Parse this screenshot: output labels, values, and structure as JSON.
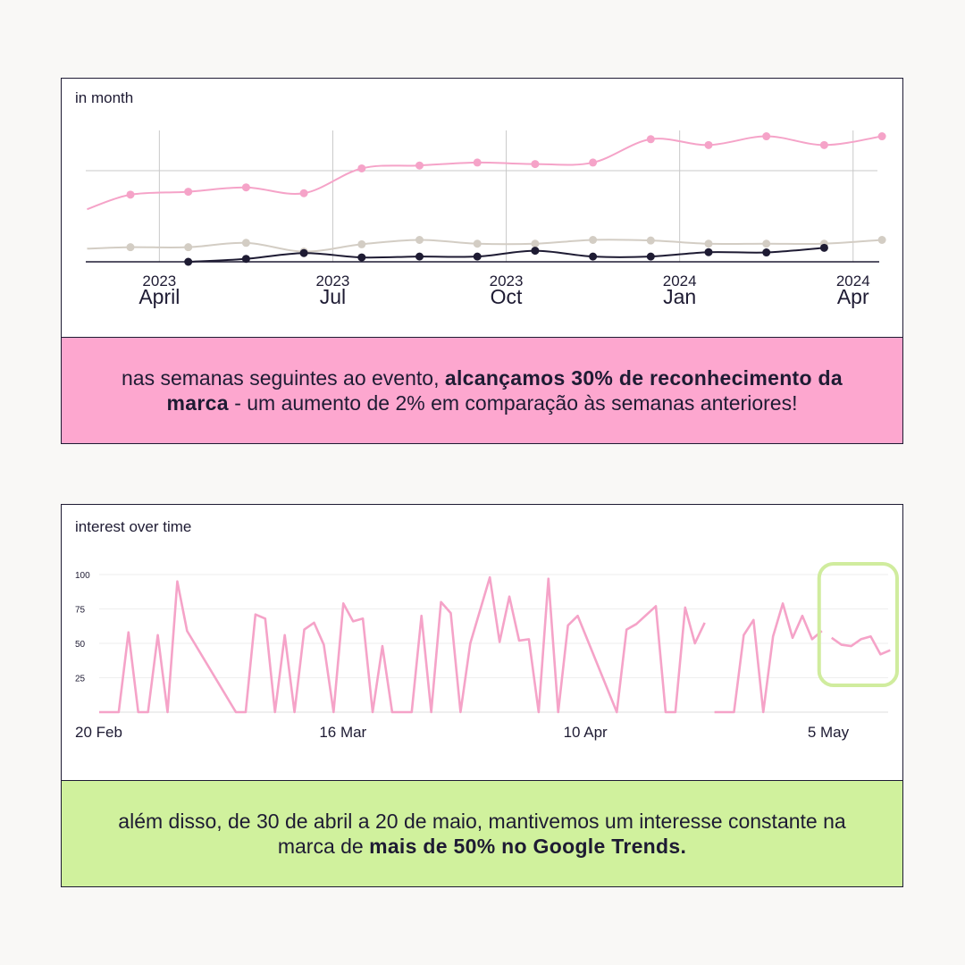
{
  "chart_data": [
    {
      "type": "line",
      "label": "in month",
      "x_ticks": [
        {
          "year": "2023",
          "month": "April"
        },
        {
          "year": "2023",
          "month": "Jul"
        },
        {
          "year": "2023",
          "month": "Oct"
        },
        {
          "year": "2024",
          "month": "Jan"
        },
        {
          "year": "2024",
          "month": "Apr"
        }
      ],
      "x_tick_positions": [
        0.5,
        3.5,
        6.5,
        9.5,
        12.5
      ],
      "x": [
        -0.75,
        0,
        1,
        2,
        3,
        4,
        5,
        6,
        7,
        8,
        9,
        10,
        11,
        12,
        13
      ],
      "ylim": [
        0,
        45
      ],
      "grid": true,
      "series": [
        {
          "color": "#f5a3c8",
          "values": [
            18,
            23,
            24,
            25.5,
            23.5,
            32,
            33,
            34,
            33.5,
            34,
            42,
            40,
            43,
            40,
            43
          ],
          "first_marker": 1
        },
        {
          "color": "#d3cdc4",
          "values": [
            4.5,
            5,
            5,
            6.5,
            3.5,
            6,
            7.5,
            6.2,
            6.2,
            7.5,
            7.3,
            6.2,
            6.2,
            6.2,
            7.5
          ],
          "first_marker": 1
        },
        {
          "color": "#1e1b33",
          "values": [
            null,
            null,
            0,
            1,
            3,
            1.5,
            1.8,
            1.8,
            3.8,
            1.8,
            1.8,
            3.3,
            3.2,
            4.8,
            null
          ],
          "first_marker": 2
        }
      ]
    },
    {
      "type": "line",
      "label": "interest over time",
      "y_ticks": [
        25,
        50,
        75,
        100
      ],
      "ylim": [
        0,
        100
      ],
      "grid": true,
      "x_ticks": [
        "20 Feb",
        "16 Mar",
        "10 Apr",
        "5 May"
      ],
      "x_tick_positions": [
        0,
        24,
        49,
        74
      ],
      "x": [
        0,
        2,
        3,
        4,
        5,
        6,
        7,
        8,
        9,
        14,
        15,
        16,
        17,
        18,
        19,
        20,
        21,
        22,
        23,
        24,
        25,
        26,
        27,
        28,
        29,
        30,
        31,
        32,
        33,
        34,
        35,
        36,
        37,
        38,
        40,
        41,
        42,
        43,
        44,
        45,
        46,
        47,
        48,
        49,
        53,
        54,
        55,
        57,
        58,
        59,
        60,
        61,
        62,
        63,
        64,
        65,
        66,
        67,
        68,
        69,
        70,
        71,
        72,
        73,
        74,
        75,
        76,
        77,
        78,
        79,
        80,
        81
      ],
      "series": [
        {
          "color": "#f5a3c8",
          "values": [
            0,
            0,
            58,
            0,
            0,
            56,
            0,
            95,
            59,
            0,
            0,
            71,
            68,
            0,
            56,
            0,
            60,
            65,
            49,
            0,
            79,
            66,
            68,
            0,
            48,
            0,
            0,
            0,
            70,
            0,
            80,
            72,
            0,
            50,
            98,
            51,
            84,
            52,
            53,
            0,
            97,
            0,
            63,
            70,
            0,
            60,
            64,
            77,
            0,
            0,
            76,
            50,
            65,
            0,
            0,
            0,
            56,
            67,
            0,
            55,
            79,
            54,
            70,
            53,
            59,
            54,
            49,
            48,
            53,
            55,
            42,
            45
          ],
          "segments": [
            [
              0,
              52
            ],
            [
              53,
              64
            ],
            [
              65,
              71
            ]
          ]
        }
      ],
      "highlight_range": [
        75,
        85
      ]
    }
  ],
  "captions": {
    "first": {
      "pre": "nas semanas seguintes ao evento, ",
      "bold": "alcançamos 30% de reconhecimento da marca",
      "post": " - um aumento de 2% em comparação às semanas anteriores!"
    },
    "second": {
      "pre": "além disso, de 30 de abril a 20 de maio, mantivemos um interesse constante na marca de ",
      "bold": "mais de 50% no Google Trends.",
      "post": ""
    }
  },
  "colors": {
    "pink": "#fda7cf",
    "green": "#d0f19d",
    "highlight": "#d0ec9e",
    "ink": "#1e1b33"
  }
}
